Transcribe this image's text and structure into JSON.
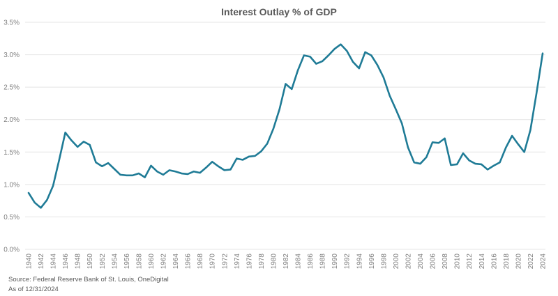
{
  "chart_data": {
    "type": "line",
    "title": "Interest Outlay % of GDP",
    "xlabel": "",
    "ylabel": "",
    "ylim": [
      0,
      3.5
    ],
    "y_ticks": [
      0,
      0.5,
      1.0,
      1.5,
      2.0,
      2.5,
      3.0,
      3.5
    ],
    "y_tick_labels": [
      "0.0%",
      "0.5%",
      "1.0%",
      "1.5%",
      "2.0%",
      "2.5%",
      "3.0%",
      "3.5%"
    ],
    "x_tick_labels": [
      "1940",
      "1942",
      "1944",
      "1946",
      "1948",
      "1950",
      "1952",
      "1954",
      "1956",
      "1958",
      "1960",
      "1962",
      "1964",
      "1966",
      "1968",
      "1970",
      "1972",
      "1974",
      "1976",
      "1978",
      "1980",
      "1982",
      "1984",
      "1986",
      "1988",
      "1990",
      "1992",
      "1994",
      "1996",
      "1998",
      "2000",
      "2002",
      "2004",
      "2006",
      "2008",
      "2010",
      "2012",
      "2014",
      "2016",
      "2018",
      "2020",
      "2022",
      "2024"
    ],
    "grid": true,
    "legend": "none",
    "series": [
      {
        "name": "Interest Outlay % of GDP",
        "color": "#1f7b96",
        "x": [
          1940,
          1941,
          1942,
          1943,
          1944,
          1945,
          1946,
          1947,
          1948,
          1949,
          1950,
          1951,
          1952,
          1953,
          1954,
          1955,
          1956,
          1957,
          1958,
          1959,
          1960,
          1961,
          1962,
          1963,
          1964,
          1965,
          1966,
          1967,
          1968,
          1969,
          1970,
          1971,
          1972,
          1973,
          1974,
          1975,
          1976,
          1977,
          1978,
          1979,
          1980,
          1981,
          1982,
          1983,
          1984,
          1985,
          1986,
          1987,
          1988,
          1989,
          1990,
          1991,
          1992,
          1993,
          1994,
          1995,
          1996,
          1997,
          1998,
          1999,
          2000,
          2001,
          2002,
          2003,
          2004,
          2005,
          2006,
          2007,
          2008,
          2009,
          2010,
          2011,
          2012,
          2013,
          2014,
          2015,
          2016,
          2017,
          2018,
          2019,
          2020,
          2021,
          2022,
          2023,
          2024
        ],
        "values": [
          0.87,
          0.72,
          0.64,
          0.76,
          0.98,
          1.38,
          1.8,
          1.68,
          1.58,
          1.66,
          1.61,
          1.34,
          1.28,
          1.33,
          1.24,
          1.15,
          1.14,
          1.14,
          1.17,
          1.11,
          1.29,
          1.2,
          1.15,
          1.22,
          1.2,
          1.17,
          1.16,
          1.2,
          1.18,
          1.26,
          1.35,
          1.28,
          1.22,
          1.23,
          1.4,
          1.38,
          1.43,
          1.44,
          1.51,
          1.63,
          1.86,
          2.16,
          2.55,
          2.47,
          2.76,
          2.99,
          2.97,
          2.86,
          2.9,
          2.99,
          3.09,
          3.16,
          3.06,
          2.89,
          2.79,
          3.04,
          2.99,
          2.84,
          2.65,
          2.37,
          2.16,
          1.94,
          1.57,
          1.34,
          1.32,
          1.42,
          1.65,
          1.64,
          1.71,
          1.3,
          1.31,
          1.48,
          1.37,
          1.32,
          1.31,
          1.23,
          1.29,
          1.34,
          1.57,
          1.75,
          1.62,
          1.5,
          1.84,
          2.41,
          3.02
        ]
      }
    ]
  },
  "footnotes": {
    "source": "Source: Federal Reserve Bank of St. Louis, OneDigital",
    "as_of": "As of 12/31/2024"
  }
}
